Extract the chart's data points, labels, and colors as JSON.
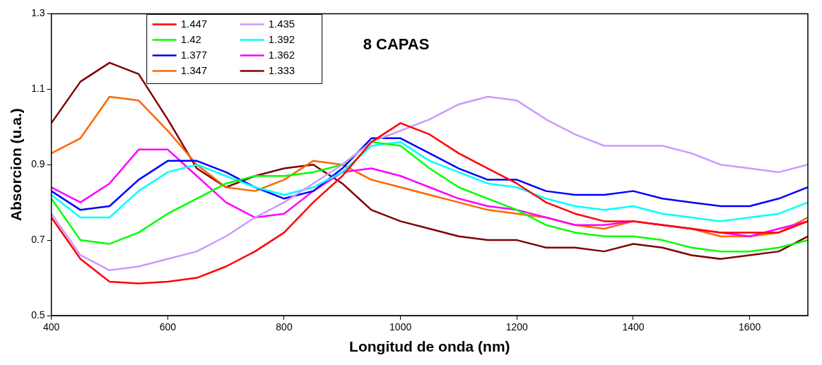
{
  "chart_data": {
    "type": "line",
    "title": "8 CAPAS",
    "xlabel": "Longitud de onda (nm)",
    "ylabel": "Absorcion (u.a.)",
    "x": [
      400,
      450,
      500,
      550,
      600,
      650,
      700,
      750,
      800,
      850,
      900,
      950,
      1000,
      1050,
      1100,
      1150,
      1200,
      1250,
      1300,
      1350,
      1400,
      1450,
      1500,
      1550,
      1600,
      1650,
      1700
    ],
    "xlim": [
      400,
      1700
    ],
    "xticks": [
      400,
      600,
      800,
      1000,
      1200,
      1400,
      1600
    ],
    "ylim": [
      0.5,
      1.3
    ],
    "yticks": [
      0.5,
      0.7,
      0.9,
      1.1,
      1.3
    ],
    "grid": false,
    "legend": "top left",
    "marker": "none",
    "line_style": "solid",
    "series": [
      {
        "name": "1.447",
        "color": "#ff0000",
        "values": [
          0.76,
          0.65,
          0.59,
          0.585,
          0.59,
          0.6,
          0.63,
          0.67,
          0.72,
          0.8,
          0.87,
          0.96,
          1.01,
          0.98,
          0.93,
          0.89,
          0.85,
          0.8,
          0.77,
          0.75,
          0.75,
          0.74,
          0.73,
          0.72,
          0.72,
          0.72,
          0.75
        ]
      },
      {
        "name": "1.435",
        "color": "#cc99ff",
        "values": [
          0.77,
          0.66,
          0.62,
          0.63,
          0.65,
          0.67,
          0.71,
          0.76,
          0.8,
          0.85,
          0.9,
          0.96,
          0.99,
          1.02,
          1.06,
          1.08,
          1.07,
          1.02,
          0.98,
          0.95,
          0.95,
          0.95,
          0.93,
          0.9,
          0.89,
          0.88,
          0.9
        ]
      },
      {
        "name": "1.42",
        "color": "#00ff00",
        "values": [
          0.81,
          0.7,
          0.69,
          0.72,
          0.77,
          0.81,
          0.85,
          0.87,
          0.87,
          0.88,
          0.9,
          0.96,
          0.95,
          0.89,
          0.84,
          0.81,
          0.78,
          0.74,
          0.72,
          0.71,
          0.71,
          0.7,
          0.68,
          0.67,
          0.67,
          0.68,
          0.7
        ]
      },
      {
        "name": "1.392",
        "color": "#00ffff",
        "values": [
          0.82,
          0.76,
          0.76,
          0.83,
          0.88,
          0.9,
          0.87,
          0.84,
          0.82,
          0.84,
          0.88,
          0.95,
          0.96,
          0.91,
          0.88,
          0.85,
          0.84,
          0.81,
          0.79,
          0.78,
          0.79,
          0.77,
          0.76,
          0.75,
          0.76,
          0.77,
          0.8
        ]
      },
      {
        "name": "1.377",
        "color": "#0000ff",
        "values": [
          0.83,
          0.78,
          0.79,
          0.86,
          0.91,
          0.91,
          0.88,
          0.84,
          0.81,
          0.83,
          0.89,
          0.97,
          0.97,
          0.93,
          0.89,
          0.86,
          0.86,
          0.83,
          0.82,
          0.82,
          0.83,
          0.81,
          0.8,
          0.79,
          0.79,
          0.81,
          0.84
        ]
      },
      {
        "name": "1.362",
        "color": "#ff00ff",
        "values": [
          0.84,
          0.8,
          0.85,
          0.94,
          0.94,
          0.87,
          0.8,
          0.76,
          0.77,
          0.83,
          0.88,
          0.89,
          0.87,
          0.84,
          0.81,
          0.79,
          0.78,
          0.76,
          0.74,
          0.74,
          0.75,
          0.74,
          0.73,
          0.72,
          0.71,
          0.73,
          0.75
        ]
      },
      {
        "name": "1.347",
        "color": "#ff6600",
        "values": [
          0.93,
          0.97,
          1.08,
          1.07,
          0.99,
          0.9,
          0.84,
          0.83,
          0.86,
          0.91,
          0.9,
          0.86,
          0.84,
          0.82,
          0.8,
          0.78,
          0.77,
          0.76,
          0.74,
          0.73,
          0.75,
          0.74,
          0.73,
          0.71,
          0.71,
          0.72,
          0.76
        ]
      },
      {
        "name": "1.333",
        "color": "#800000",
        "values": [
          1.01,
          1.12,
          1.17,
          1.14,
          1.02,
          0.89,
          0.84,
          0.87,
          0.89,
          0.9,
          0.85,
          0.78,
          0.75,
          0.73,
          0.71,
          0.7,
          0.7,
          0.68,
          0.68,
          0.67,
          0.69,
          0.68,
          0.66,
          0.65,
          0.66,
          0.67,
          0.71
        ]
      }
    ]
  }
}
